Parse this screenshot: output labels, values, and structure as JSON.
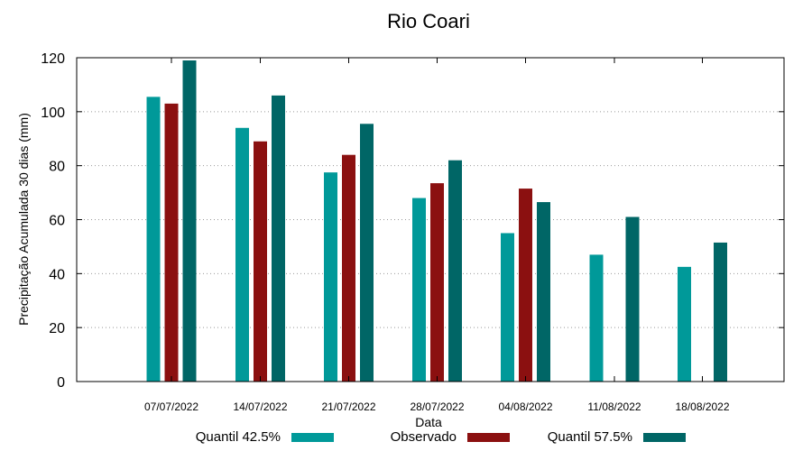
{
  "chart_data": {
    "type": "bar",
    "title": "Rio Coari",
    "xlabel": "Data",
    "ylabel": "Precipitação Acumulada 30 dias (mm)",
    "ylim": [
      0,
      120
    ],
    "yticks": [
      0,
      20,
      40,
      60,
      80,
      100,
      120
    ],
    "grid": "horizontal dotted",
    "legend_position": "bottom",
    "categories": [
      "07/07/2022",
      "14/07/2022",
      "21/07/2022",
      "28/07/2022",
      "04/08/2022",
      "11/08/2022",
      "18/08/2022"
    ],
    "series": [
      {
        "name": "Quantil 42.5%",
        "color": "#009999",
        "values": [
          105.5,
          94,
          77.5,
          68,
          55,
          47,
          42.5
        ]
      },
      {
        "name": "Observado",
        "color": "#8b1010",
        "values": [
          103,
          89,
          84,
          73.5,
          71.5,
          null,
          null
        ]
      },
      {
        "name": "Quantil 57.5%",
        "color": "#006666",
        "values": [
          119,
          106,
          95.5,
          82,
          66.5,
          61,
          51.5
        ]
      }
    ]
  }
}
